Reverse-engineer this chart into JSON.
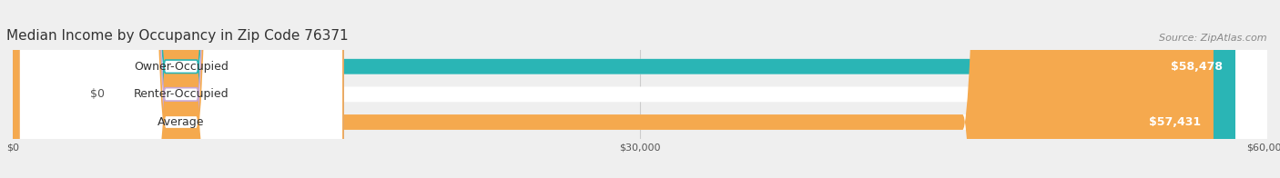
{
  "title": "Median Income by Occupancy in Zip Code 76371",
  "source": "Source: ZipAtlas.com",
  "categories": [
    "Owner-Occupied",
    "Renter-Occupied",
    "Average"
  ],
  "values": [
    58478,
    0,
    57431
  ],
  "bar_colors": [
    "#2ab5b5",
    "#c9a8d4",
    "#f5a94e"
  ],
  "value_labels": [
    "$58,478",
    "$0",
    "$57,431"
  ],
  "xlim": [
    0,
    60000
  ],
  "xticks": [
    0,
    30000,
    60000
  ],
  "xtick_labels": [
    "$0",
    "$30,000",
    "$60,000"
  ],
  "bar_height": 0.55,
  "background_color": "#efefef",
  "title_fontsize": 11,
  "source_fontsize": 8,
  "label_fontsize": 9,
  "value_fontsize": 9
}
